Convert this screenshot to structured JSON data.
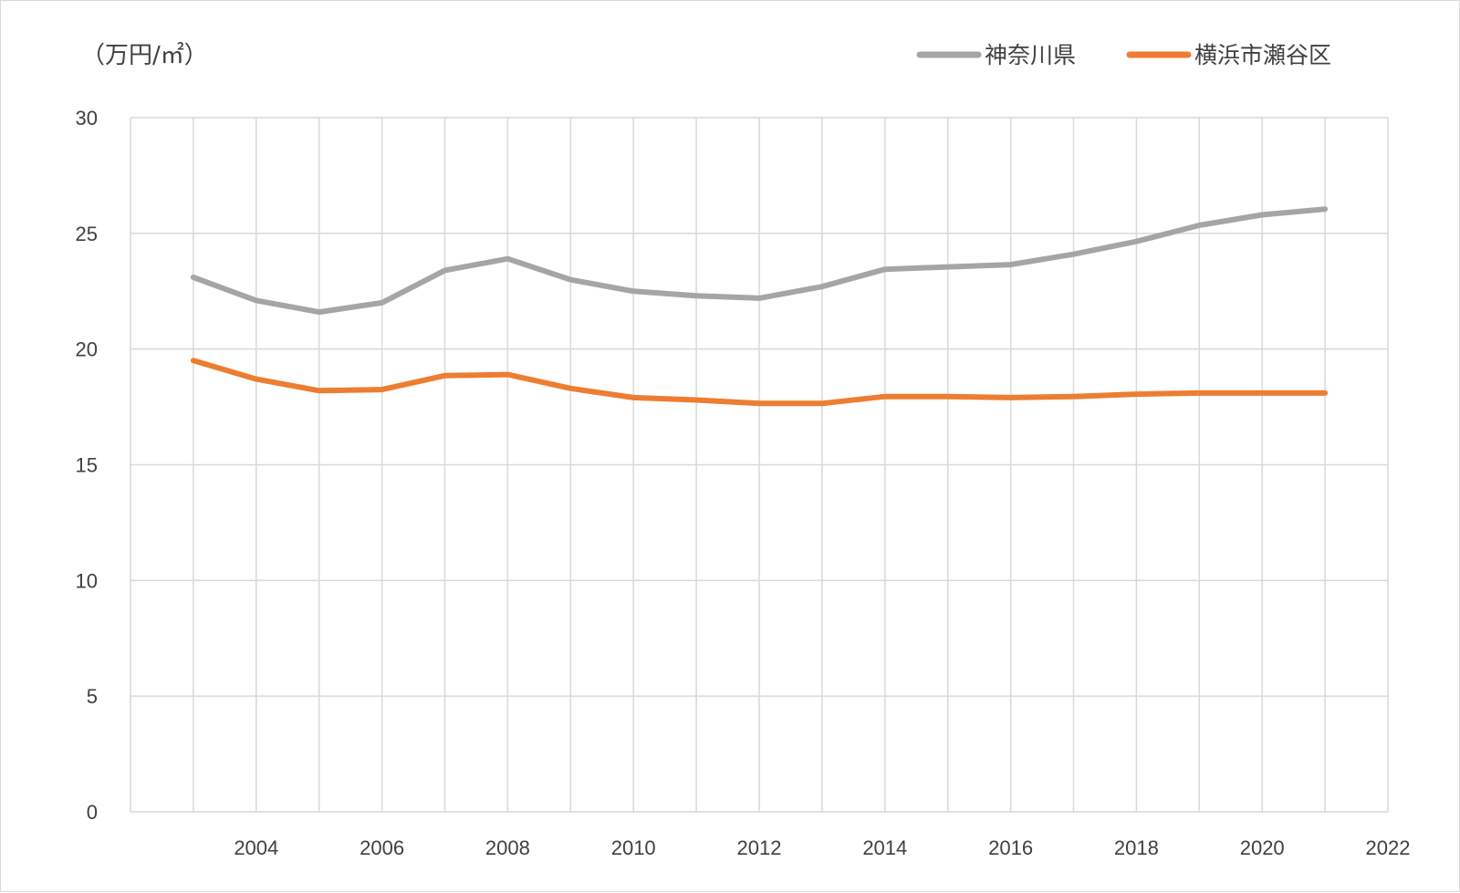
{
  "chart_data": {
    "type": "line",
    "title": "",
    "unit_label": "（万円/㎡）",
    "xlabel": "",
    "ylabel": "",
    "x": [
      2003,
      2004,
      2005,
      2006,
      2007,
      2008,
      2009,
      2010,
      2011,
      2012,
      2013,
      2014,
      2015,
      2016,
      2017,
      2018,
      2019,
      2020,
      2021
    ],
    "xlim": [
      2002,
      2022
    ],
    "x_ticks": [
      "2004",
      "2006",
      "2008",
      "2010",
      "2012",
      "2014",
      "2016",
      "2018",
      "2020",
      "2022"
    ],
    "ylim": [
      0,
      30
    ],
    "y_ticks": [
      "0",
      "5",
      "10",
      "15",
      "20",
      "25",
      "30"
    ],
    "grid": true,
    "legend_position": "top-right",
    "series": [
      {
        "name": "神奈川県",
        "color": "#a5a5a5",
        "values": [
          23.1,
          22.1,
          21.6,
          22.0,
          23.4,
          23.9,
          23.0,
          22.5,
          22.3,
          22.2,
          22.7,
          23.45,
          23.55,
          23.65,
          24.1,
          24.65,
          25.35,
          25.8,
          26.05
        ]
      },
      {
        "name": "横浜市瀬谷区",
        "color": "#ed7d31",
        "values": [
          19.5,
          18.7,
          18.2,
          18.25,
          18.85,
          18.9,
          18.3,
          17.9,
          17.8,
          17.65,
          17.65,
          17.95,
          17.95,
          17.9,
          17.95,
          18.05,
          18.1,
          18.1,
          18.1
        ]
      }
    ]
  }
}
